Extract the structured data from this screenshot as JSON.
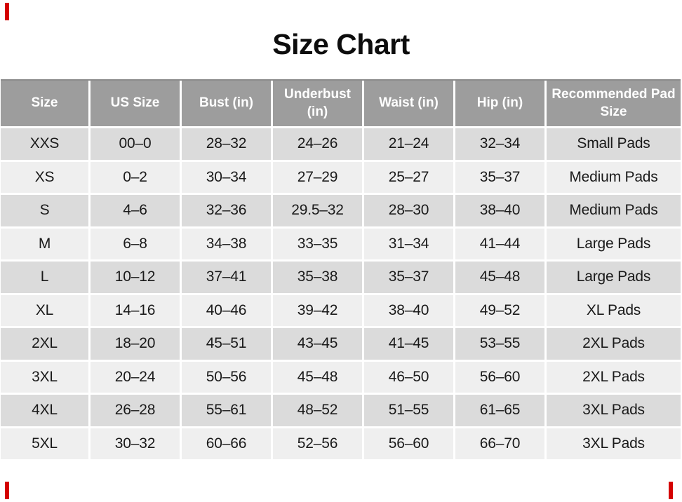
{
  "chart_data": {
    "type": "table",
    "title": "Size Chart",
    "columns": [
      "Size",
      "US Size",
      "Bust (in)",
      "Underbust (in)",
      "Waist (in)",
      "Hip (in)",
      "Recommended Pad Size"
    ],
    "rows": [
      [
        "XXS",
        "00–0",
        "28–32",
        "24–26",
        "21–24",
        "32–34",
        "Small Pads"
      ],
      [
        "XS",
        "0–2",
        "30–34",
        "27–29",
        "25–27",
        "35–37",
        "Medium Pads"
      ],
      [
        "S",
        "4–6",
        "32–36",
        "29.5–32",
        "28–30",
        "38–40",
        "Medium Pads"
      ],
      [
        "M",
        "6–8",
        "34–38",
        "33–35",
        "31–34",
        "41–44",
        "Large Pads"
      ],
      [
        "L",
        "10–12",
        "37–41",
        "35–38",
        "35–37",
        "45–48",
        "Large Pads"
      ],
      [
        "XL",
        "14–16",
        "40–46",
        "39–42",
        "38–40",
        "49–52",
        "XL Pads"
      ],
      [
        "2XL",
        "18–20",
        "45–51",
        "43–45",
        "41–45",
        "53–55",
        "2XL Pads"
      ],
      [
        "3XL",
        "20–24",
        "50–56",
        "45–48",
        "46–50",
        "56–60",
        "2XL Pads"
      ],
      [
        "4XL",
        "26–28",
        "55–61",
        "48–52",
        "51–55",
        "61–65",
        "3XL Pads"
      ],
      [
        "5XL",
        "30–32",
        "60–66",
        "52–56",
        "56–60",
        "66–70",
        "3XL Pads"
      ]
    ],
    "layout": {
      "legend": "none",
      "grid": "white 3px gaps between cells",
      "header_position": "top",
      "row_striping": "alternating"
    }
  },
  "colors": {
    "header_bg": "#9d9d9d",
    "header_text": "#ffffff",
    "row_odd_bg": "#dbdbdb",
    "row_even_bg": "#efefef",
    "cell_text": "#1a1a1a",
    "title_text": "#0d0d0d",
    "top_border_line": "#8b8b8b",
    "corner_mark": "#d40000",
    "page_bg": "#ffffff"
  }
}
